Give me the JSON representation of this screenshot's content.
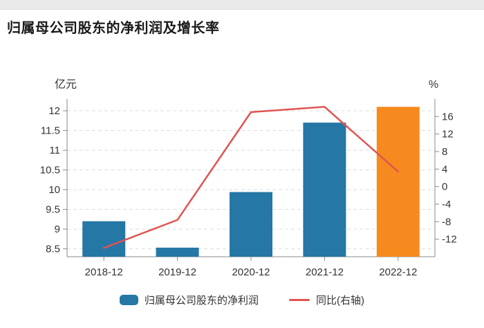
{
  "page": {
    "title": "归属母公司股东的净利润及增长率"
  },
  "colors": {
    "bar_blue": "#2577a6",
    "bar_orange": "#f68a1e",
    "line_red": "#e05452",
    "grid": "#dcdcdc",
    "axis": "#888888",
    "tick_text": "#333333",
    "title_text": "#1a1a1a",
    "top_strip": "#eaeaea"
  },
  "chart_data": {
    "type": "bar",
    "title": "归属母公司股东的净利润及增长率",
    "categories": [
      "2018-12",
      "2019-12",
      "2020-12",
      "2021-12",
      "2022-12"
    ],
    "series": [
      {
        "name": "归属母公司股东的净利润",
        "type": "bar",
        "axis": "left",
        "values": [
          9.2,
          8.53,
          9.94,
          11.7,
          12.1
        ],
        "bar_colors": [
          "#2577a6",
          "#2577a6",
          "#2577a6",
          "#2577a6",
          "#f68a1e"
        ]
      },
      {
        "name": "同比(右轴)",
        "type": "line",
        "axis": "right",
        "values": [
          -14,
          -7.6,
          17,
          18.2,
          3.4
        ],
        "color": "#e05452"
      }
    ],
    "left_axis": {
      "label": "亿元",
      "min": 8.3,
      "max": 12.3,
      "ticks": [
        8.5,
        9,
        9.5,
        10,
        10.5,
        11,
        11.5,
        12
      ]
    },
    "right_axis": {
      "label": "%",
      "min": -16,
      "max": 20,
      "ticks": [
        -12,
        -8,
        -4,
        0,
        4,
        8,
        12,
        16
      ]
    },
    "grid": "horizontal-dashed",
    "legend_position": "bottom",
    "legend": [
      {
        "label": "归属母公司股东的净利润",
        "swatch": "bar",
        "color": "#2577a6"
      },
      {
        "label": "同比(右轴)",
        "swatch": "line",
        "color": "#e05452"
      }
    ]
  }
}
